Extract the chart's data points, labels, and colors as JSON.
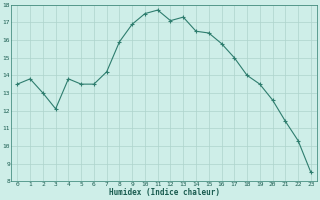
{
  "x": [
    0,
    1,
    2,
    3,
    4,
    5,
    6,
    7,
    8,
    9,
    10,
    11,
    12,
    13,
    14,
    15,
    16,
    17,
    18,
    19,
    20,
    21,
    22,
    23
  ],
  "y": [
    13.5,
    13.8,
    13.0,
    12.1,
    13.8,
    13.5,
    13.5,
    14.2,
    15.9,
    16.9,
    17.5,
    17.7,
    17.1,
    17.3,
    16.5,
    16.4,
    15.8,
    15.0,
    14.0,
    13.5,
    12.6,
    11.4,
    10.3,
    8.5
  ],
  "xlabel": "Humidex (Indice chaleur)",
  "bg_color": "#ceeee8",
  "line_color": "#2e7d6e",
  "grid_color": "#aed4cc",
  "ylim": [
    8,
    18
  ],
  "xlim": [
    -0.5,
    23.5
  ],
  "yticks": [
    8,
    9,
    10,
    11,
    12,
    13,
    14,
    15,
    16,
    17,
    18
  ],
  "xticks": [
    0,
    1,
    2,
    3,
    4,
    5,
    6,
    7,
    8,
    9,
    10,
    11,
    12,
    13,
    14,
    15,
    16,
    17,
    18,
    19,
    20,
    21,
    22,
    23
  ]
}
